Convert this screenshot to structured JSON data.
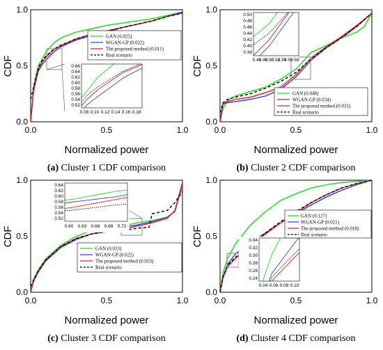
{
  "panels": [
    {
      "id": "a",
      "caption_letter": "(a)",
      "caption_text": " Cluster 1 CDF comparison",
      "xlabel": "Normalized power",
      "ylabel": "CDF",
      "xticks": [
        "0.0",
        "0.5",
        "1.0"
      ],
      "yticks": [
        "0.0",
        "0.5",
        "1.0"
      ],
      "legend": [
        "GAN (0.025)",
        "WGAN-GP (0.022)",
        "The proposed method (0.011)",
        "Real scenario"
      ],
      "inset": {
        "xticks": [
          "0.08",
          "0.10",
          "0.12",
          "0.14",
          "0.16",
          "0.18"
        ],
        "yticks": [
          "0.52",
          "0.54",
          "0.56",
          "0.58",
          "0.60",
          "0.62",
          "0.64",
          "0.66"
        ]
      }
    },
    {
      "id": "b",
      "caption_letter": "(b)",
      "caption_text": " Cluster 2 CDF comparison",
      "xlabel": "Normalized power",
      "ylabel": "CDF",
      "xticks": [
        "0.0",
        "0.5",
        "1.0"
      ],
      "yticks": [
        "0.0",
        "0.5",
        "1.0"
      ],
      "legend": [
        "GAN (0.048)",
        "WGAN-GP (0.034)",
        "The proposed method (0.031)",
        "Real scenario"
      ],
      "inset": {
        "xticks": [
          "0.46",
          "0.48",
          "0.50",
          "0.52",
          "0.54",
          "0.56",
          "0.58"
        ],
        "yticks": [
          "0.38",
          "0.40",
          "0.42",
          "0.44",
          "0.46",
          "0.48",
          "0.50"
        ]
      }
    },
    {
      "id": "c",
      "caption_letter": "(c)",
      "caption_text": " Cluster 3 CDF comparison",
      "xlabel": "Normalized power",
      "ylabel": "CDF",
      "xticks": [
        "0.0",
        "0.5",
        "1.0"
      ],
      "yticks": [
        "0.0",
        "0.5",
        "1.0"
      ],
      "legend": [
        "GAN (0.033)",
        "WGAN-GP (0.022)",
        "The proposed method (0.019)",
        "Real scenario"
      ],
      "inset": {
        "xticks": [
          "0.60",
          "0.63",
          "0.66",
          "0.69",
          "0.72"
        ],
        "yticks": [
          "0.52",
          "0.54",
          "0.56",
          "0.58",
          "0.60",
          "0.62",
          "0.64"
        ]
      }
    },
    {
      "id": "d",
      "caption_letter": "(d)",
      "caption_text": " Cluster 4 CDF comparison",
      "xlabel": "Normalized power",
      "ylabel": "CDF",
      "xticks": [
        "0.0",
        "0.5",
        "1.0"
      ],
      "yticks": [
        "0.0",
        "0.5",
        "1.0"
      ],
      "legend": [
        "GAN (0.127)",
        "WGAN-GP (0.021)",
        "The proposed method (0.018)",
        "Real scenario"
      ],
      "inset": {
        "xticks": [
          "0.04",
          "0.06",
          "0.08",
          "0.10"
        ],
        "yticks": [
          "0.24",
          "0.26",
          "0.28",
          "0.30",
          "0.32",
          "0.34"
        ]
      }
    }
  ],
  "colors": {
    "gan": "#22dd22",
    "wgan": "#3344ee",
    "proposed": "#ee2222",
    "real": "#000000",
    "zoom_box": "#888888"
  },
  "chart_data": [
    {
      "type": "line",
      "title": "",
      "xlabel": "Normalized power",
      "ylabel": "CDF",
      "xlim": [
        0,
        1
      ],
      "ylim": [
        0,
        1
      ],
      "inset": {
        "xlim": [
          0.07,
          0.185
        ],
        "ylim": [
          0.51,
          0.67
        ]
      },
      "series": [
        {
          "name": "GAN (0.025)",
          "x": [
            0,
            0.02,
            0.05,
            0.08,
            0.1,
            0.15,
            0.2,
            0.3,
            0.4,
            0.5,
            0.6,
            0.7,
            0.8,
            0.9,
            1.0
          ],
          "y": [
            0,
            0.32,
            0.5,
            0.57,
            0.62,
            0.7,
            0.75,
            0.8,
            0.83,
            0.86,
            0.88,
            0.9,
            0.92,
            0.95,
            0.98
          ]
        },
        {
          "name": "WGAN-GP (0.022)",
          "x": [
            0,
            0.02,
            0.05,
            0.08,
            0.1,
            0.15,
            0.2,
            0.3,
            0.4,
            0.5,
            0.6,
            0.7,
            0.8,
            0.9,
            1.0
          ],
          "y": [
            0,
            0.28,
            0.45,
            0.52,
            0.55,
            0.62,
            0.67,
            0.73,
            0.77,
            0.8,
            0.84,
            0.87,
            0.9,
            0.94,
            0.98
          ]
        },
        {
          "name": "The proposed method (0.011)",
          "x": [
            0,
            0.02,
            0.05,
            0.08,
            0.1,
            0.15,
            0.2,
            0.3,
            0.4,
            0.5,
            0.6,
            0.7,
            0.8,
            0.9,
            1.0
          ],
          "y": [
            0,
            0.3,
            0.47,
            0.54,
            0.575,
            0.64,
            0.68,
            0.74,
            0.78,
            0.81,
            0.84,
            0.87,
            0.9,
            0.94,
            0.97
          ]
        },
        {
          "name": "Real scenario",
          "x": [
            0,
            0.02,
            0.05,
            0.08,
            0.1,
            0.15,
            0.2,
            0.3,
            0.4,
            0.5,
            0.6,
            0.7,
            0.8,
            0.9,
            1.0
          ],
          "y": [
            0.2,
            0.31,
            0.48,
            0.555,
            0.585,
            0.645,
            0.685,
            0.74,
            0.78,
            0.81,
            0.84,
            0.87,
            0.9,
            0.94,
            0.97
          ]
        }
      ]
    },
    {
      "type": "line",
      "title": "",
      "xlabel": "Normalized power",
      "ylabel": "CDF",
      "xlim": [
        0,
        1
      ],
      "ylim": [
        0,
        1
      ],
      "inset": {
        "xlim": [
          0.455,
          0.585
        ],
        "ylim": [
          0.37,
          0.505
        ]
      },
      "series": [
        {
          "name": "GAN (0.048)",
          "x": [
            0,
            0.02,
            0.05,
            0.1,
            0.2,
            0.3,
            0.4,
            0.5,
            0.6,
            0.7,
            0.8,
            0.9,
            0.95,
            1.0
          ],
          "y": [
            0,
            0.12,
            0.19,
            0.23,
            0.27,
            0.31,
            0.38,
            0.47,
            0.62,
            0.68,
            0.75,
            0.8,
            0.85,
            0.97
          ]
        },
        {
          "name": "WGAN-GP (0.034)",
          "x": [
            0,
            0.02,
            0.05,
            0.1,
            0.2,
            0.3,
            0.4,
            0.5,
            0.6,
            0.7,
            0.8,
            0.9,
            1.0
          ],
          "y": [
            0,
            0.16,
            0.17,
            0.18,
            0.2,
            0.23,
            0.29,
            0.4,
            0.55,
            0.66,
            0.75,
            0.85,
            0.97
          ]
        },
        {
          "name": "The proposed method (0.031)",
          "x": [
            0,
            0.02,
            0.05,
            0.1,
            0.2,
            0.3,
            0.4,
            0.5,
            0.6,
            0.7,
            0.8,
            0.9,
            1.0
          ],
          "y": [
            0,
            0.17,
            0.18,
            0.2,
            0.22,
            0.26,
            0.31,
            0.42,
            0.57,
            0.67,
            0.76,
            0.86,
            0.97
          ]
        },
        {
          "name": "Real scenario",
          "x": [
            0,
            0.02,
            0.05,
            0.1,
            0.2,
            0.3,
            0.4,
            0.5,
            0.6,
            0.7,
            0.8,
            0.9,
            1.0
          ],
          "y": [
            0.08,
            0.17,
            0.2,
            0.22,
            0.25,
            0.3,
            0.36,
            0.44,
            0.56,
            0.66,
            0.75,
            0.85,
            0.97
          ]
        }
      ]
    },
    {
      "type": "line",
      "title": "",
      "xlabel": "Normalized power",
      "ylabel": "CDF",
      "xlim": [
        0,
        1
      ],
      "ylim": [
        0,
        1
      ],
      "inset": {
        "xlim": [
          0.585,
          0.725
        ],
        "ylim": [
          0.51,
          0.65
        ]
      },
      "series": [
        {
          "name": "GAN (0.033)",
          "x": [
            0,
            0.02,
            0.05,
            0.1,
            0.2,
            0.3,
            0.4,
            0.5,
            0.6,
            0.7,
            0.8,
            0.9,
            0.95,
            1.0
          ],
          "y": [
            0,
            0.12,
            0.2,
            0.3,
            0.42,
            0.5,
            0.55,
            0.57,
            0.59,
            0.62,
            0.64,
            0.67,
            0.72,
            0.95
          ]
        },
        {
          "name": "WGAN-GP (0.022)",
          "x": [
            0,
            0.02,
            0.05,
            0.1,
            0.2,
            0.3,
            0.4,
            0.5,
            0.6,
            0.7,
            0.8,
            0.9,
            0.95,
            1.0
          ],
          "y": [
            0,
            0.1,
            0.18,
            0.28,
            0.4,
            0.47,
            0.52,
            0.55,
            0.58,
            0.6,
            0.63,
            0.67,
            0.72,
            0.97
          ]
        },
        {
          "name": "The proposed method (0.019)",
          "x": [
            0,
            0.02,
            0.05,
            0.1,
            0.2,
            0.3,
            0.4,
            0.5,
            0.6,
            0.7,
            0.8,
            0.9,
            0.95,
            1.0
          ],
          "y": [
            0,
            0.11,
            0.19,
            0.29,
            0.41,
            0.48,
            0.52,
            0.54,
            0.56,
            0.59,
            0.62,
            0.66,
            0.73,
            0.98
          ]
        },
        {
          "name": "Real scenario",
          "x": [
            0,
            0.02,
            0.05,
            0.1,
            0.2,
            0.3,
            0.4,
            0.5,
            0.6,
            0.7,
            0.78,
            0.8,
            0.9,
            0.95,
            1.0
          ],
          "y": [
            0.05,
            0.11,
            0.19,
            0.29,
            0.41,
            0.48,
            0.52,
            0.54,
            0.55,
            0.57,
            0.58,
            0.7,
            0.73,
            0.8,
            0.9
          ]
        }
      ]
    },
    {
      "type": "line",
      "title": "",
      "xlabel": "Normalized power",
      "ylabel": "CDF",
      "xlim": [
        0,
        1
      ],
      "ylim": [
        0,
        1
      ],
      "inset": {
        "xlim": [
          0.025,
          0.105
        ],
        "ylim": [
          0.23,
          0.345
        ]
      },
      "series": [
        {
          "name": "GAN (0.127)",
          "x": [
            0,
            0.02,
            0.05,
            0.1,
            0.2,
            0.3,
            0.4,
            0.5,
            0.6,
            0.7,
            0.8,
            0.9,
            1.0
          ],
          "y": [
            0,
            0.18,
            0.3,
            0.43,
            0.6,
            0.72,
            0.82,
            0.88,
            0.93,
            0.96,
            0.98,
            0.99,
            1.0
          ]
        },
        {
          "name": "WGAN-GP (0.021)",
          "x": [
            0,
            0.02,
            0.05,
            0.1,
            0.2,
            0.3,
            0.4,
            0.5,
            0.6,
            0.7,
            0.8,
            0.9,
            1.0
          ],
          "y": [
            0,
            0.14,
            0.25,
            0.34,
            0.44,
            0.53,
            0.62,
            0.7,
            0.78,
            0.85,
            0.91,
            0.96,
            1.0
          ]
        },
        {
          "name": "The proposed method (0.018)",
          "x": [
            0,
            0.02,
            0.05,
            0.1,
            0.2,
            0.3,
            0.4,
            0.5,
            0.6,
            0.7,
            0.8,
            0.9,
            1.0
          ],
          "y": [
            0,
            0.13,
            0.23,
            0.3,
            0.42,
            0.52,
            0.62,
            0.71,
            0.8,
            0.87,
            0.93,
            0.97,
            1.0
          ]
        },
        {
          "name": "Real scenario",
          "x": [
            0,
            0.02,
            0.05,
            0.1,
            0.2,
            0.3,
            0.4,
            0.5,
            0.6,
            0.7,
            0.8,
            0.9,
            1.0
          ],
          "y": [
            0,
            0.14,
            0.24,
            0.31,
            0.43,
            0.53,
            0.63,
            0.72,
            0.8,
            0.87,
            0.93,
            0.97,
            1.0
          ]
        }
      ]
    }
  ]
}
